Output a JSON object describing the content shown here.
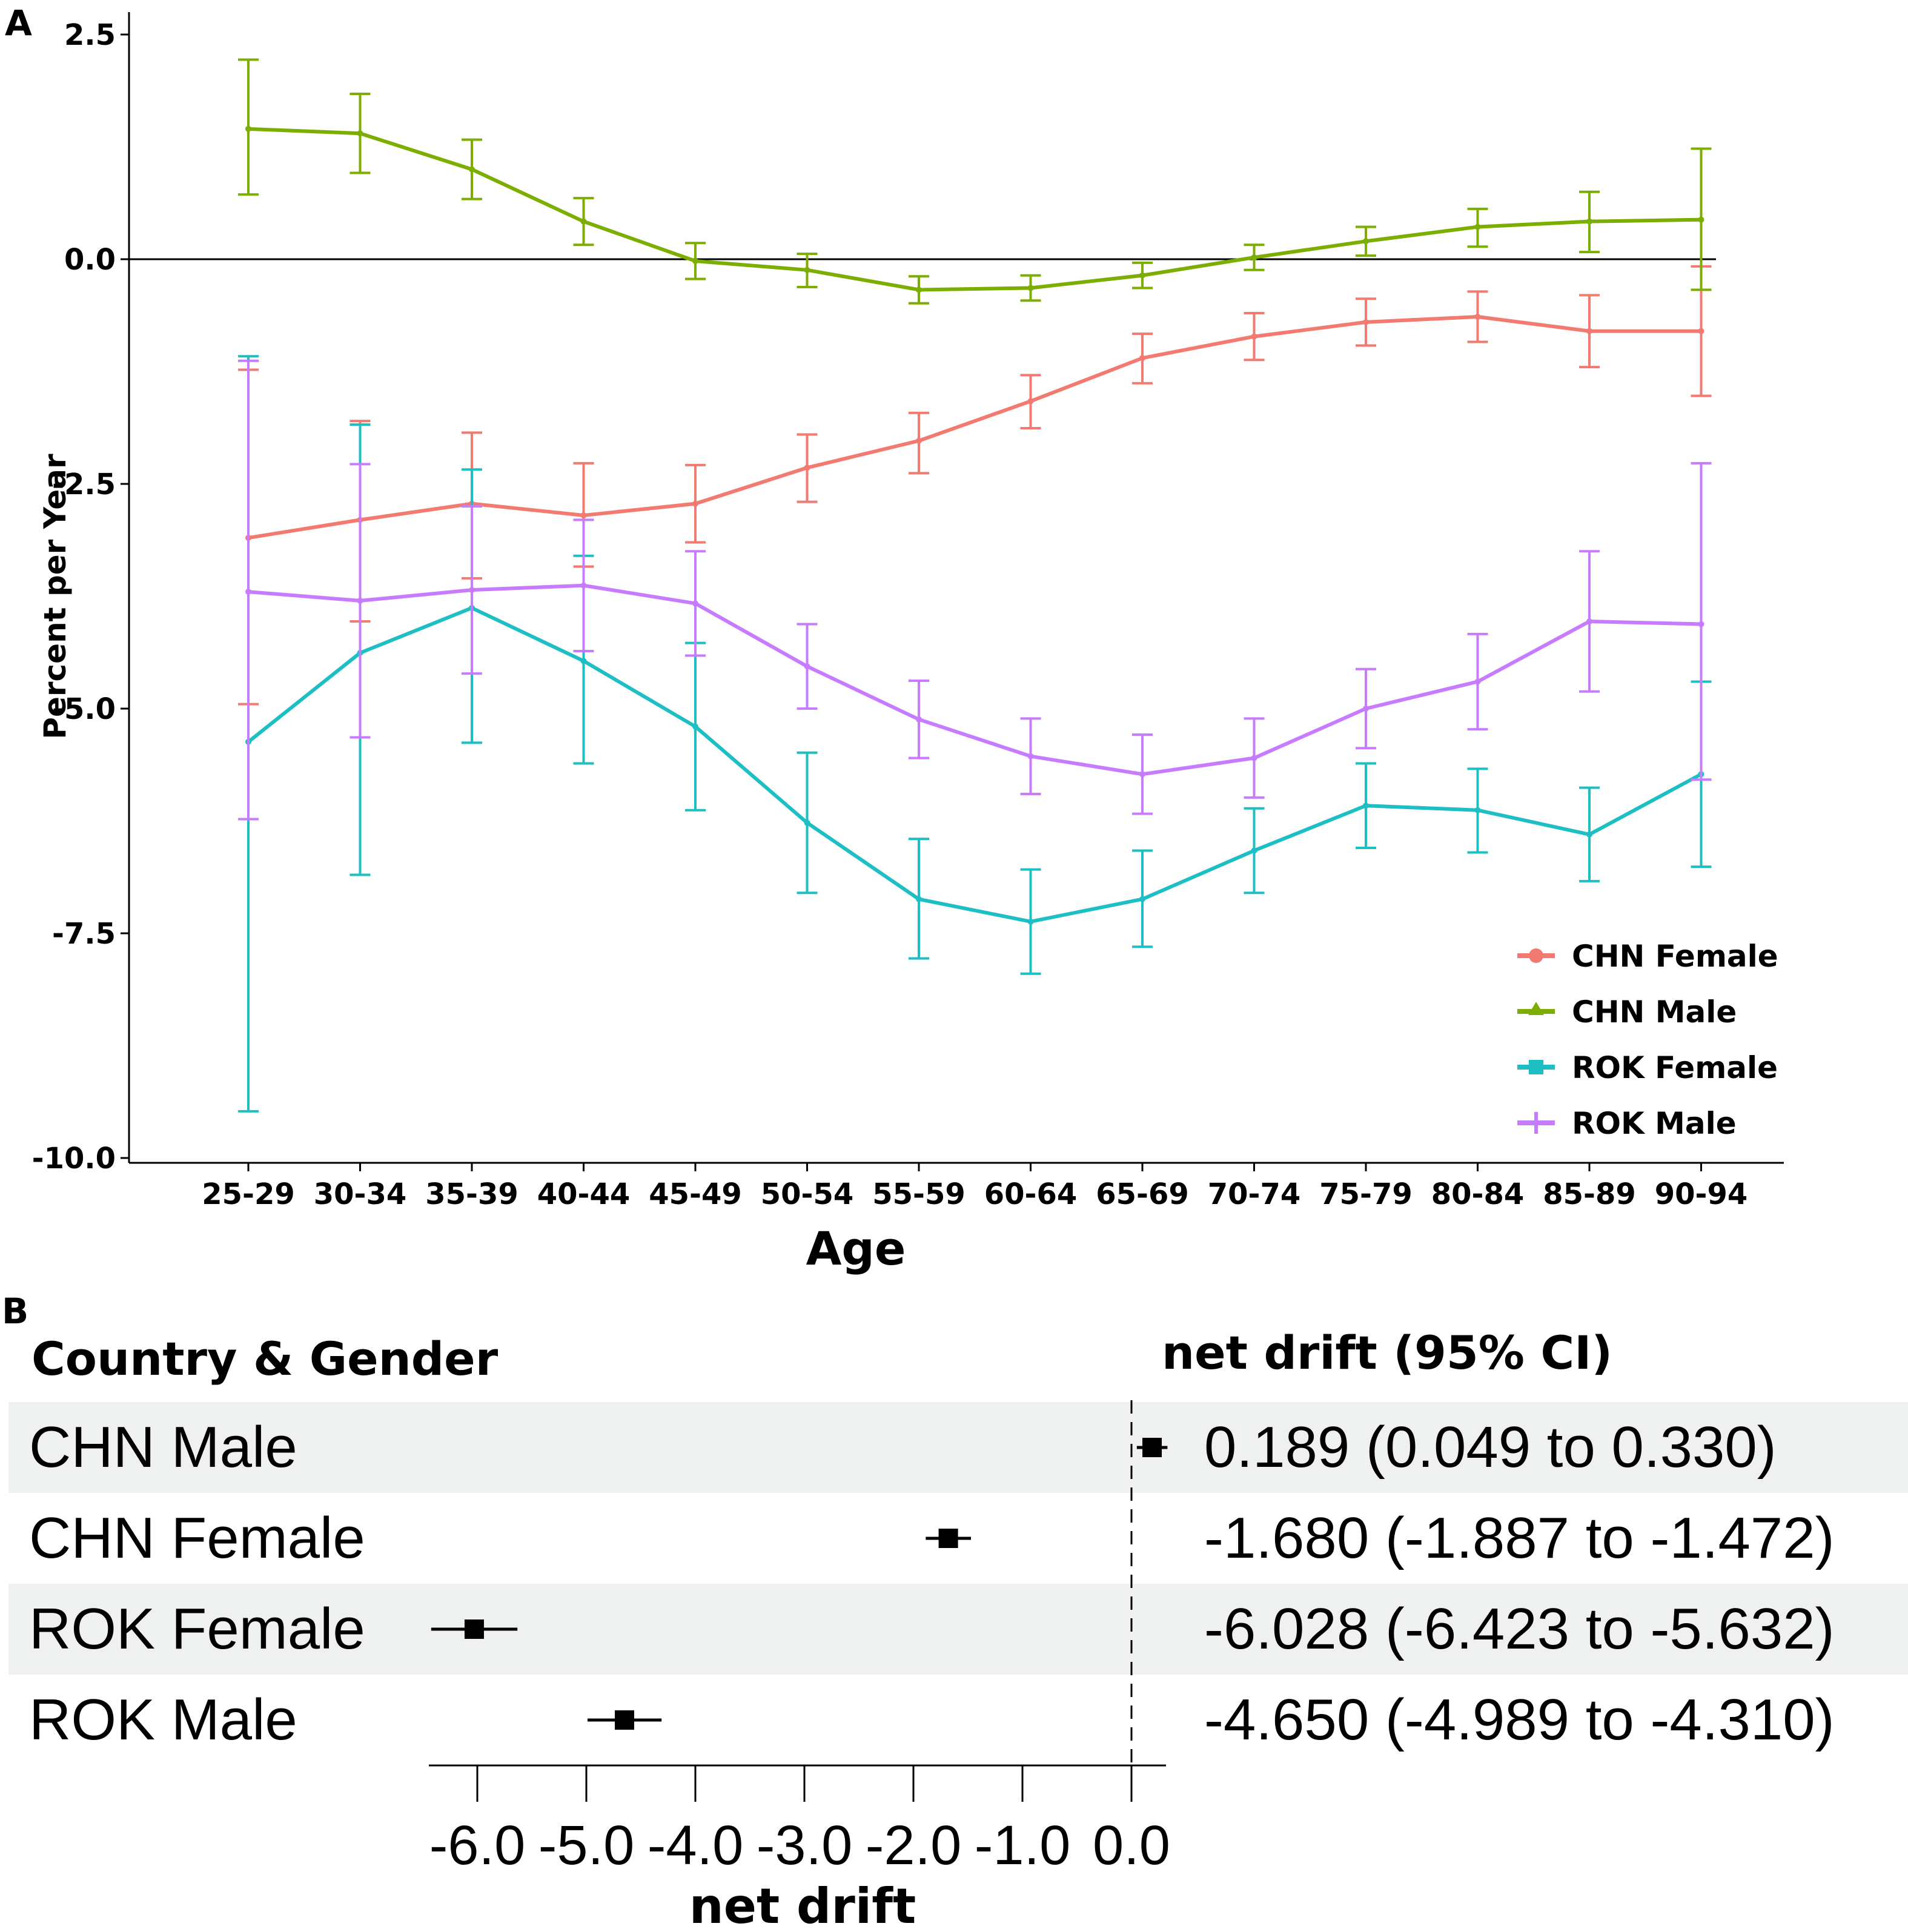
{
  "panel_a": {
    "label": "A",
    "chart_data": {
      "type": "line",
      "title": "",
      "xlabel": "Age",
      "ylabel": "Percent per Year",
      "categories": [
        "25-29",
        "30-34",
        "35-39",
        "40-44",
        "45-49",
        "50-54",
        "55-59",
        "60-64",
        "65-69",
        "70-74",
        "75-79",
        "80-84",
        "85-89",
        "90-94"
      ],
      "ylim": [
        -10,
        2.8
      ],
      "yticks": [
        2.5,
        0.0,
        -2.5,
        -5.0,
        -7.5,
        -10.0
      ],
      "ytick_labels": [
        "2.5",
        "0.0",
        "-2.5",
        "-5.0",
        "-7.5",
        "-10.0"
      ],
      "reference_line": 0,
      "legend_position": "bottom-right",
      "series": [
        {
          "name": "CHN Female",
          "color": "#F27A70",
          "marker": "circle",
          "values": [
            -3.1,
            -2.9,
            -2.72,
            -2.85,
            -2.72,
            -2.32,
            -2.02,
            -1.58,
            -1.1,
            -0.86,
            -0.7,
            -0.64,
            -0.8,
            -0.8
          ],
          "lower": [
            -4.95,
            -4.03,
            -3.55,
            -3.42,
            -3.15,
            -2.7,
            -2.38,
            -1.88,
            -1.38,
            -1.12,
            -0.96,
            -0.92,
            -1.2,
            -1.52
          ],
          "upper": [
            -1.23,
            -1.8,
            -1.93,
            -2.27,
            -2.29,
            -1.95,
            -1.71,
            -1.29,
            -0.83,
            -0.6,
            -0.44,
            -0.36,
            -0.4,
            -0.08
          ]
        },
        {
          "name": "CHN Male",
          "color": "#7CAE00",
          "marker": "triangle",
          "values": [
            1.45,
            1.4,
            1.0,
            0.42,
            -0.02,
            -0.12,
            -0.34,
            -0.32,
            -0.18,
            0.02,
            0.2,
            0.36,
            0.42,
            0.44
          ],
          "lower": [
            0.72,
            0.96,
            0.67,
            0.16,
            -0.22,
            -0.31,
            -0.49,
            -0.46,
            -0.32,
            -0.12,
            0.04,
            0.14,
            0.08,
            -0.34
          ],
          "upper": [
            2.22,
            1.84,
            1.33,
            0.68,
            0.18,
            0.06,
            -0.19,
            -0.18,
            -0.04,
            0.16,
            0.36,
            0.56,
            0.75,
            1.23
          ]
        },
        {
          "name": "ROK Female",
          "color": "#1EBFC4",
          "marker": "square",
          "values": [
            -5.37,
            -4.38,
            -3.88,
            -4.47,
            -5.2,
            -6.27,
            -7.12,
            -7.37,
            -7.12,
            -6.58,
            -6.08,
            -6.13,
            -6.4,
            -5.73
          ],
          "lower": [
            -9.48,
            -6.85,
            -5.38,
            -5.61,
            -6.13,
            -7.05,
            -7.78,
            -7.95,
            -7.65,
            -7.05,
            -6.55,
            -6.6,
            -6.92,
            -6.76
          ],
          "upper": [
            -1.08,
            -1.84,
            -2.34,
            -3.3,
            -4.27,
            -5.49,
            -6.45,
            -6.79,
            -6.58,
            -6.11,
            -5.61,
            -5.67,
            -5.88,
            -4.7
          ]
        },
        {
          "name": "ROK Male",
          "color": "#C77CFF",
          "marker": "cross",
          "values": [
            -3.7,
            -3.8,
            -3.68,
            -3.63,
            -3.83,
            -4.53,
            -5.12,
            -5.53,
            -5.73,
            -5.55,
            -5.0,
            -4.7,
            -4.03,
            -4.06
          ],
          "lower": [
            -6.23,
            -5.32,
            -4.61,
            -4.36,
            -4.41,
            -5.0,
            -5.55,
            -5.95,
            -6.17,
            -5.99,
            -5.44,
            -5.23,
            -4.81,
            -5.79
          ],
          "upper": [
            -1.13,
            -2.28,
            -2.75,
            -2.9,
            -3.25,
            -4.06,
            -4.69,
            -5.11,
            -5.29,
            -5.11,
            -4.56,
            -4.17,
            -3.25,
            -2.27
          ]
        }
      ]
    }
  },
  "panel_b": {
    "label": "B",
    "col_header_left": "Country & Gender",
    "col_header_right": "net drift (95% CI)",
    "chart_data": {
      "type": "forest",
      "xlabel": "net drift",
      "xlim": [
        -6.6,
        0.3
      ],
      "xticks": [
        -6.0,
        -5.0,
        -4.0,
        -3.0,
        -2.0,
        -1.0,
        0.0
      ],
      "xtick_labels": [
        "-6.0",
        "-5.0",
        "-4.0",
        "-3.0",
        "-2.0",
        "-1.0",
        "0.0"
      ],
      "reference_line": 0,
      "rows": [
        {
          "label": "CHN Male",
          "estimate": 0.189,
          "lower": 0.049,
          "upper": 0.33,
          "text": "0.189 (0.049 to 0.330)"
        },
        {
          "label": "CHN Female",
          "estimate": -1.68,
          "lower": -1.887,
          "upper": -1.472,
          "text": "-1.680 (-1.887 to -1.472)"
        },
        {
          "label": "ROK Female",
          "estimate": -6.028,
          "lower": -6.423,
          "upper": -5.632,
          "text": "-6.028 (-6.423 to -5.632)"
        },
        {
          "label": "ROK Male",
          "estimate": -4.65,
          "lower": -4.989,
          "upper": -4.31,
          "text": "-4.650 (-4.989 to -4.310)"
        }
      ],
      "stripe_color": "#EEF1EF"
    }
  }
}
